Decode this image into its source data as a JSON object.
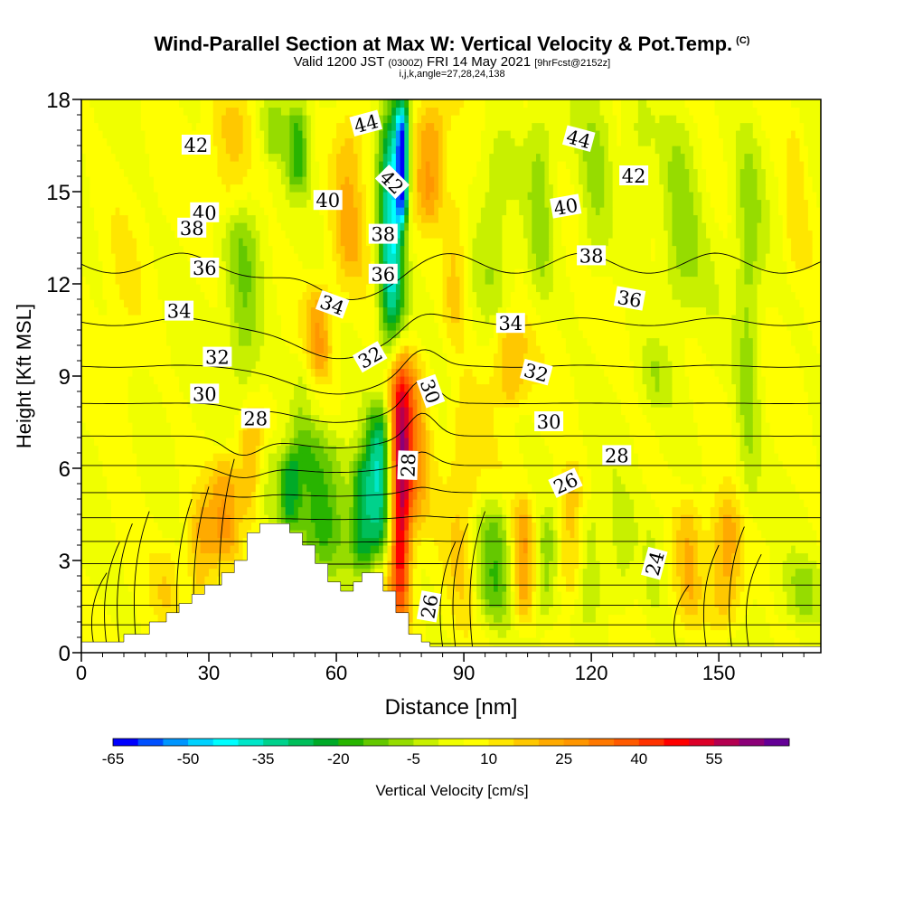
{
  "header": {
    "title": "Wind-Parallel Section at Max W: Vertical Velocity & Pot.Temp.",
    "copyright": "(C)",
    "valid_prefix": "Valid 1200 JST",
    "valid_utc": "(0300Z)",
    "valid_date": "FRI 14 May 2021",
    "forecast": "[9hrFcst@2152z]",
    "indices": "i,j,k,angle=27,28,24,138"
  },
  "chart_data": {
    "type": "heatmap",
    "xlabel": "Distance [nm]",
    "ylabel": "Height [Kft MSL]",
    "xlim": [
      0,
      174
    ],
    "ylim": [
      0,
      18
    ],
    "x_ticks": [
      0,
      30,
      60,
      90,
      120,
      150
    ],
    "y_ticks": [
      0,
      3,
      6,
      9,
      12,
      15,
      18
    ],
    "colorbar": {
      "label": "Vertical Velocity [cm/s]",
      "tick_labels": [
        "-65",
        "-50",
        "-35",
        "-20",
        "-5",
        "10",
        "25",
        "40",
        "55"
      ],
      "colors": [
        "#0000ff",
        "#0050ff",
        "#0096ff",
        "#00d2ff",
        "#00ffff",
        "#00e6c8",
        "#00d28c",
        "#00be5a",
        "#00aa28",
        "#28b400",
        "#64c800",
        "#96dc00",
        "#c8f000",
        "#f0ff00",
        "#ffff00",
        "#ffe600",
        "#ffc800",
        "#ffaa00",
        "#ff9600",
        "#ff7800",
        "#ff5a00",
        "#ff3200",
        "#ff0000",
        "#dc0028",
        "#b40050",
        "#8c0078",
        "#640096"
      ]
    },
    "contour_field": "Potential Temperature",
    "contour_labels": [
      {
        "text": "42",
        "x": 27,
        "y": 16.5,
        "rot": 0
      },
      {
        "text": "40",
        "x": 29,
        "y": 14.3,
        "rot": 0
      },
      {
        "text": "38",
        "x": 26,
        "y": 13.8,
        "rot": 0
      },
      {
        "text": "36",
        "x": 29,
        "y": 12.5,
        "rot": 0
      },
      {
        "text": "34",
        "x": 23,
        "y": 11.1,
        "rot": 0
      },
      {
        "text": "32",
        "x": 32,
        "y": 9.6,
        "rot": 0
      },
      {
        "text": "30",
        "x": 29,
        "y": 8.4,
        "rot": 0
      },
      {
        "text": "28",
        "x": 41,
        "y": 7.6,
        "rot": 0
      },
      {
        "text": "44",
        "x": 67,
        "y": 17.2,
        "rot": -15
      },
      {
        "text": "40",
        "x": 58,
        "y": 14.7,
        "rot": 0
      },
      {
        "text": "42",
        "x": 73,
        "y": 15.3,
        "rot": 45
      },
      {
        "text": "38",
        "x": 71,
        "y": 13.6,
        "rot": 0
      },
      {
        "text": "36",
        "x": 71,
        "y": 12.3,
        "rot": 0
      },
      {
        "text": "34",
        "x": 59,
        "y": 11.3,
        "rot": 20
      },
      {
        "text": "32",
        "x": 68,
        "y": 9.6,
        "rot": -30
      },
      {
        "text": "30",
        "x": 82,
        "y": 8.5,
        "rot": 70
      },
      {
        "text": "28",
        "x": 77,
        "y": 6.1,
        "rot": -88
      },
      {
        "text": "26",
        "x": 82,
        "y": 1.5,
        "rot": -80
      },
      {
        "text": "44",
        "x": 117,
        "y": 16.7,
        "rot": 15
      },
      {
        "text": "42",
        "x": 130,
        "y": 15.5,
        "rot": 0
      },
      {
        "text": "40",
        "x": 114,
        "y": 14.5,
        "rot": -10
      },
      {
        "text": "38",
        "x": 120,
        "y": 12.9,
        "rot": 0
      },
      {
        "text": "36",
        "x": 129,
        "y": 11.5,
        "rot": 10
      },
      {
        "text": "34",
        "x": 101,
        "y": 10.7,
        "rot": 0
      },
      {
        "text": "32",
        "x": 107,
        "y": 9.1,
        "rot": 15
      },
      {
        "text": "30",
        "x": 110,
        "y": 7.5,
        "rot": 0
      },
      {
        "text": "28",
        "x": 126,
        "y": 6.4,
        "rot": 0
      },
      {
        "text": "26",
        "x": 114,
        "y": 5.5,
        "rot": -25
      },
      {
        "text": "24",
        "x": 135,
        "y": 2.9,
        "rot": -75
      }
    ],
    "terrain": [
      [
        0,
        0.35
      ],
      [
        10,
        0.35
      ],
      [
        10,
        0.6
      ],
      [
        16,
        0.6
      ],
      [
        16,
        1.0
      ],
      [
        20,
        1.0
      ],
      [
        20,
        1.3
      ],
      [
        23,
        1.3
      ],
      [
        23,
        1.6
      ],
      [
        26,
        1.6
      ],
      [
        26,
        1.9
      ],
      [
        29,
        1.9
      ],
      [
        29,
        2.2
      ],
      [
        33,
        2.2
      ],
      [
        33,
        2.6
      ],
      [
        36,
        2.6
      ],
      [
        36,
        3.0
      ],
      [
        39,
        3.0
      ],
      [
        39,
        3.9
      ],
      [
        42,
        3.9
      ],
      [
        42,
        4.2
      ],
      [
        49,
        4.2
      ],
      [
        49,
        3.9
      ],
      [
        52,
        3.9
      ],
      [
        52,
        3.5
      ],
      [
        55,
        3.5
      ],
      [
        55,
        2.9
      ],
      [
        58,
        2.9
      ],
      [
        58,
        2.3
      ],
      [
        61,
        2.3
      ],
      [
        61,
        2.0
      ],
      [
        64,
        2.0
      ],
      [
        64,
        2.3
      ],
      [
        66,
        2.3
      ],
      [
        66,
        2.6
      ],
      [
        71,
        2.6
      ],
      [
        71,
        2.0
      ],
      [
        74,
        2.0
      ],
      [
        74,
        1.3
      ],
      [
        77,
        1.3
      ],
      [
        77,
        0.6
      ],
      [
        80,
        0.6
      ],
      [
        80,
        0.35
      ],
      [
        82,
        0.35
      ],
      [
        82,
        0.2
      ],
      [
        174,
        0.2
      ]
    ],
    "features": [
      {
        "x": 75,
        "y0": 0.8,
        "y1": 9.5,
        "w": 2.5,
        "v": 45
      },
      {
        "x": 78,
        "y0": 4,
        "y1": 10,
        "w": 4,
        "v": 22
      },
      {
        "x": 70,
        "y0": 3,
        "y1": 8,
        "w": 3,
        "v": -35
      },
      {
        "x": 66,
        "y0": 2.5,
        "y1": 6.5,
        "w": 2.5,
        "v": -25
      },
      {
        "x": 56,
        "y0": 2.5,
        "y1": 7.5,
        "w": 7,
        "v": -18
      },
      {
        "x": 49,
        "y0": 4,
        "y1": 6.5,
        "w": 2.5,
        "v": -22
      },
      {
        "x": 44,
        "y0": 4.2,
        "y1": 7,
        "w": 4,
        "v": -10
      },
      {
        "x": 73,
        "y0": 10,
        "y1": 18,
        "w": 3,
        "v": -45
      },
      {
        "x": 75.5,
        "y0": 14,
        "y1": 18,
        "w": 1.5,
        "v": -55
      },
      {
        "x": 82,
        "y0": 14,
        "y1": 18,
        "w": 3.5,
        "v": 20
      },
      {
        "x": 63,
        "y0": 12,
        "y1": 18,
        "w": 4,
        "v": 15
      },
      {
        "x": 56,
        "y0": 9,
        "y1": 12,
        "w": 3,
        "v": 18
      },
      {
        "x": 51,
        "y0": 15,
        "y1": 18,
        "w": 2.5,
        "v": -20
      },
      {
        "x": 52,
        "y0": 6,
        "y1": 10,
        "w": 3,
        "v": -8
      },
      {
        "x": 38,
        "y0": 8,
        "y1": 15,
        "w": 4,
        "v": -12
      },
      {
        "x": 45,
        "y0": 16,
        "y1": 18,
        "w": 3,
        "v": -10
      },
      {
        "x": 34,
        "y0": 3,
        "y1": 6.5,
        "w": 4,
        "v": 18
      },
      {
        "x": 40,
        "y0": 4,
        "y1": 8,
        "w": 2.5,
        "v": 14
      },
      {
        "x": 28,
        "y0": 1.5,
        "y1": 5,
        "w": 3,
        "v": 12
      },
      {
        "x": 20,
        "y0": 1.2,
        "y1": 3.5,
        "w": 3,
        "v": 7
      },
      {
        "x": 10,
        "y0": 2,
        "y1": 14,
        "w": 4,
        "v": 4
      },
      {
        "x": 35,
        "y0": 14,
        "y1": 18,
        "w": 5,
        "v": 10
      },
      {
        "x": 90,
        "y0": 0.5,
        "y1": 9,
        "w": 4,
        "v": 10
      },
      {
        "x": 97,
        "y0": 1,
        "y1": 5,
        "w": 5,
        "v": -18
      },
      {
        "x": 104,
        "y0": 0.8,
        "y1": 5,
        "w": 3,
        "v": 22
      },
      {
        "x": 109,
        "y0": 1,
        "y1": 4.5,
        "w": 3,
        "v": -12
      },
      {
        "x": 115,
        "y0": 1.5,
        "y1": 6,
        "w": 3,
        "v": 15
      },
      {
        "x": 120,
        "y0": 1,
        "y1": 5,
        "w": 3,
        "v": -8
      },
      {
        "x": 127,
        "y0": 0.8,
        "y1": 5,
        "w": 3,
        "v": -7
      },
      {
        "x": 135,
        "y0": 1,
        "y1": 5,
        "w": 3,
        "v": -6
      },
      {
        "x": 143,
        "y0": 1,
        "y1": 5,
        "w": 3,
        "v": 12
      },
      {
        "x": 152,
        "y0": 0.8,
        "y1": 5,
        "w": 4,
        "v": 18
      },
      {
        "x": 170,
        "y0": 1,
        "y1": 3,
        "w": 5,
        "v": -8
      },
      {
        "x": 101,
        "y0": 8,
        "y1": 11,
        "w": 4,
        "v": 16
      },
      {
        "x": 97,
        "y0": 11,
        "y1": 17,
        "w": 4,
        "v": -8
      },
      {
        "x": 108,
        "y0": 11,
        "y1": 18,
        "w": 3,
        "v": -10
      },
      {
        "x": 121,
        "y0": 12,
        "y1": 18,
        "w": 4,
        "v": -10
      },
      {
        "x": 131,
        "y0": 13,
        "y1": 18,
        "w": 3.5,
        "v": -8
      },
      {
        "x": 141,
        "y0": 11,
        "y1": 18,
        "w": 5,
        "v": -12
      },
      {
        "x": 157,
        "y0": 4,
        "y1": 17,
        "w": 3,
        "v": -12
      },
      {
        "x": 168,
        "y0": 12,
        "y1": 18,
        "w": 3,
        "v": 8
      },
      {
        "x": 88,
        "y0": 10,
        "y1": 15,
        "w": 3,
        "v": 12
      },
      {
        "x": 135,
        "y0": 8,
        "y1": 10,
        "w": 3,
        "v": -6
      }
    ]
  }
}
